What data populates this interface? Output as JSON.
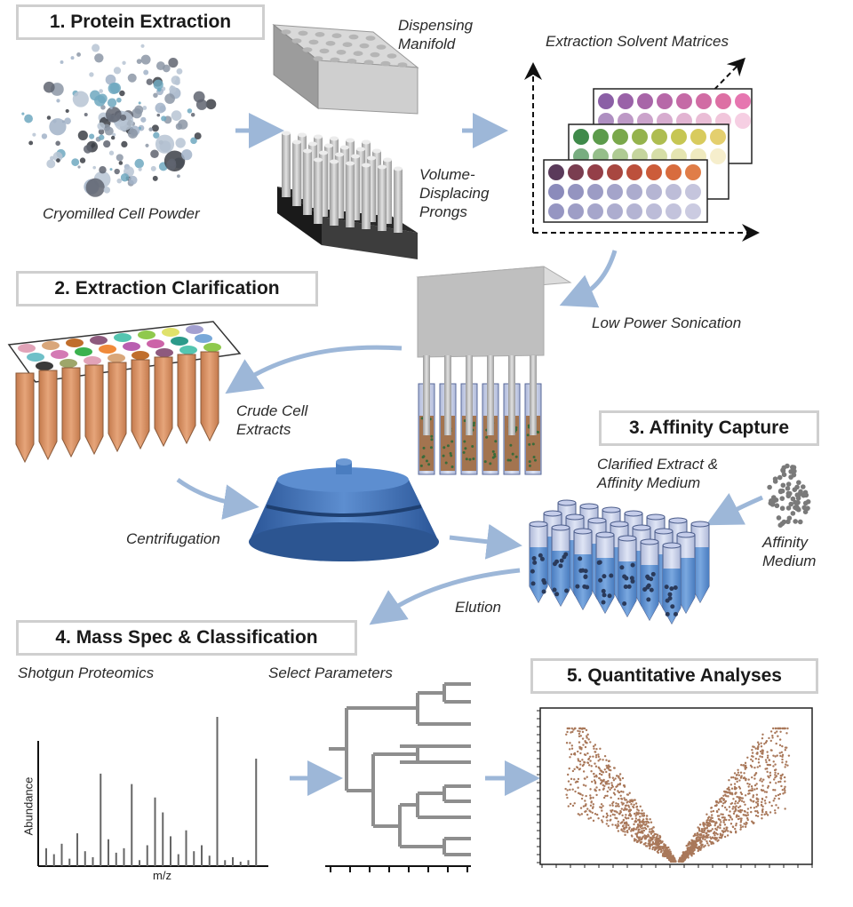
{
  "titles": {
    "s1": "1. Protein Extraction",
    "s2": "2. Extraction Clarification",
    "s3": "3. Affinity Capture",
    "s4": "4. Mass Spec & Classification",
    "s5": "5. Quantitative Analyses"
  },
  "labels": {
    "dispensing": "Dispensing\nManifold",
    "matrices": "Extraction Solvent Matrices",
    "powder": "Cryomilled Cell Powder",
    "prongs": "Volume-\nDisplacing\nProngs",
    "sonication": "Low Power Sonication",
    "crude": "Crude Cell\nExtracts",
    "centrifugation": "Centrifugation",
    "clarified": "Clarified Extract &\nAffinity Medium",
    "affinity_medium": "Affinity\nMedium",
    "elution": "Elution",
    "shotgun": "Shotgun Proteomics",
    "select": "Select Parameters",
    "abundance": "Abundance",
    "mz": "m/z"
  },
  "colors": {
    "arrow": "#9db7d8",
    "tube_orange": "#d98f60",
    "tube_blue": "#5b8fd0",
    "centrifuge": "#3a6bb0",
    "volcano": "#a9785a",
    "title_border": "#cfcfcf"
  },
  "chart_data": [
    {
      "type": "bar",
      "xlabel": "m/z",
      "ylabel": "Abundance",
      "values": [
        0.12,
        0.08,
        0.15,
        0.05,
        0.22,
        0.1,
        0.06,
        0.62,
        0.18,
        0.09,
        0.12,
        0.55,
        0.04,
        0.14,
        0.46,
        0.36,
        0.2,
        0.08,
        0.24,
        0.1,
        0.14,
        0.07,
        1.0,
        0.04,
        0.06,
        0.03,
        0.04,
        0.72
      ]
    },
    {
      "type": "scatter",
      "title": "",
      "note": "volcano plot"
    }
  ]
}
